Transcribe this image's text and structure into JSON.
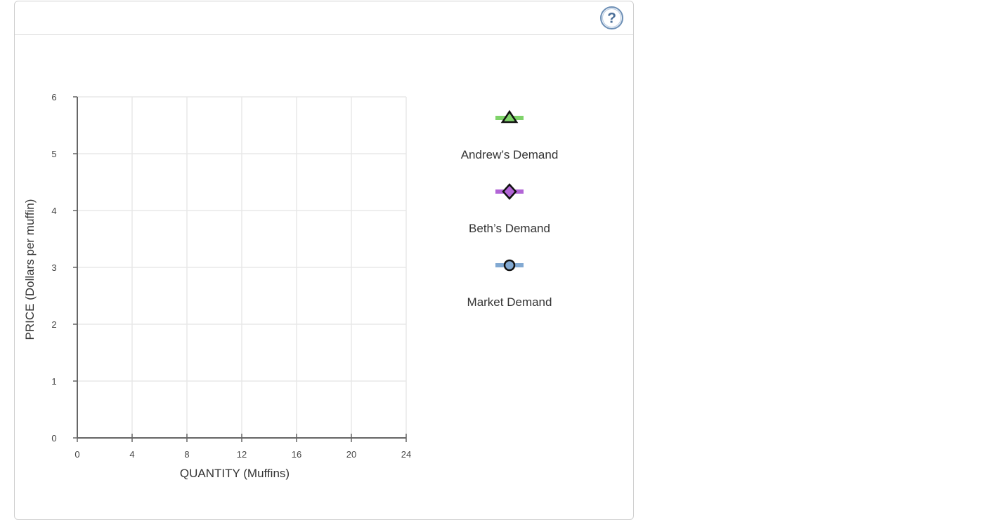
{
  "colors": {
    "grid": "#e8e8e8",
    "axis": "#666666",
    "help_ring": "#6d8fb5",
    "help_glyph": "#4b6f98"
  },
  "help": {
    "icon_text": "?"
  },
  "chart_data": {
    "type": "line",
    "title": "",
    "xlabel": "QUANTITY (Muffins)",
    "ylabel": "PRICE (Dollars per muffin)",
    "xlim": [
      0,
      24
    ],
    "ylim": [
      0,
      6
    ],
    "xticks": [
      0,
      4,
      8,
      12,
      16,
      20,
      24
    ],
    "yticks": [
      0,
      1,
      2,
      3,
      4,
      5,
      6
    ],
    "grid": true,
    "legend_position": "right",
    "series": [
      {
        "name": "Andrew’s Demand",
        "marker": "triangle",
        "color": "#7fd36a",
        "points": []
      },
      {
        "name": "Beth’s Demand",
        "marker": "diamond",
        "color": "#b265d6",
        "points": []
      },
      {
        "name": "Market Demand",
        "marker": "circle",
        "color": "#82a9d2",
        "points": []
      }
    ]
  }
}
